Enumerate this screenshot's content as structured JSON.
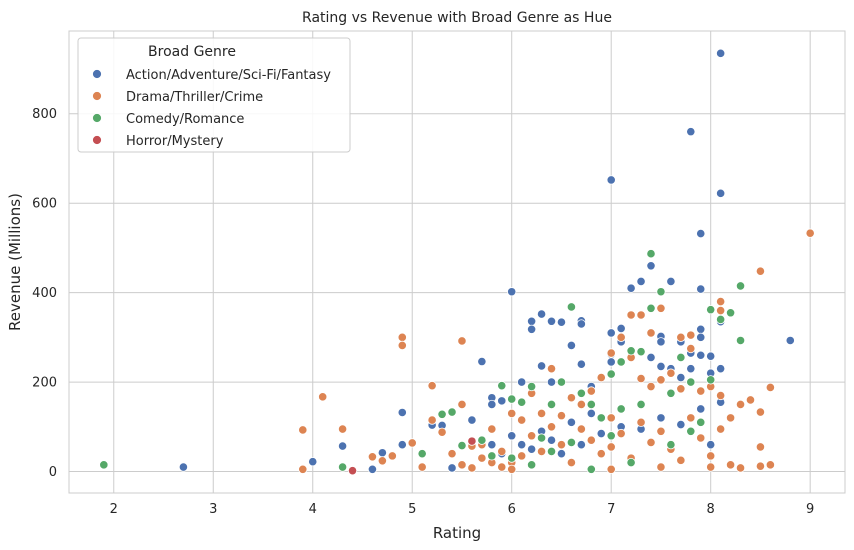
{
  "chart_data": {
    "type": "scatter",
    "title": "Rating vs Revenue with Broad Genre as Hue",
    "xlabel": "Rating",
    "ylabel": "Revenue (Millions)",
    "xlim": [
      1.55,
      9.35
    ],
    "ylim": [
      -48,
      985
    ],
    "xticks": [
      2,
      3,
      4,
      5,
      6,
      7,
      8,
      9
    ],
    "yticks": [
      0,
      200,
      400,
      600,
      800
    ],
    "grid": true,
    "legend": {
      "title": "Broad Genre",
      "placement": "top-left"
    },
    "series": [
      {
        "name": "Action/Adventure/Sci-Fi/Fantasy",
        "color": "#4c72b0",
        "points": [
          [
            2.7,
            10
          ],
          [
            4.0,
            22
          ],
          [
            4.3,
            57
          ],
          [
            4.6,
            5
          ],
          [
            4.7,
            42
          ],
          [
            4.9,
            132
          ],
          [
            4.9,
            60
          ],
          [
            5.2,
            104
          ],
          [
            5.3,
            103
          ],
          [
            5.4,
            8
          ],
          [
            5.6,
            115
          ],
          [
            5.7,
            246
          ],
          [
            5.8,
            165
          ],
          [
            5.8,
            150
          ],
          [
            5.9,
            158
          ],
          [
            6.0,
            402
          ],
          [
            6.1,
            200
          ],
          [
            6.2,
            336
          ],
          [
            6.2,
            318
          ],
          [
            6.3,
            352
          ],
          [
            6.3,
            236
          ],
          [
            6.4,
            336
          ],
          [
            6.4,
            200
          ],
          [
            6.5,
            334
          ],
          [
            6.6,
            282
          ],
          [
            6.7,
            337
          ],
          [
            6.7,
            330
          ],
          [
            6.7,
            240
          ],
          [
            6.8,
            190
          ],
          [
            7.0,
            652
          ],
          [
            7.0,
            310
          ],
          [
            7.0,
            262
          ],
          [
            7.0,
            245
          ],
          [
            7.1,
            320
          ],
          [
            7.1,
            290
          ],
          [
            7.2,
            410
          ],
          [
            7.3,
            425
          ],
          [
            7.4,
            460
          ],
          [
            7.4,
            255
          ],
          [
            7.5,
            302
          ],
          [
            7.5,
            290
          ],
          [
            7.5,
            235
          ],
          [
            7.6,
            425
          ],
          [
            7.6,
            230
          ],
          [
            7.7,
            290
          ],
          [
            7.7,
            210
          ],
          [
            7.8,
            760
          ],
          [
            7.8,
            265
          ],
          [
            7.8,
            230
          ],
          [
            7.9,
            532
          ],
          [
            7.9,
            408
          ],
          [
            7.9,
            318
          ],
          [
            7.9,
            300
          ],
          [
            7.9,
            260
          ],
          [
            8.0,
            258
          ],
          [
            8.0,
            220
          ],
          [
            8.1,
            935
          ],
          [
            8.1,
            622
          ],
          [
            8.1,
            335
          ],
          [
            8.1,
            230
          ],
          [
            8.1,
            155
          ],
          [
            8.8,
            293
          ],
          [
            6.0,
            80
          ],
          [
            6.1,
            60
          ],
          [
            6.2,
            50
          ],
          [
            6.3,
            90
          ],
          [
            6.4,
            70
          ],
          [
            6.5,
            40
          ],
          [
            6.6,
            110
          ],
          [
            6.7,
            60
          ],
          [
            6.8,
            130
          ],
          [
            6.9,
            85
          ],
          [
            7.1,
            100
          ],
          [
            7.3,
            95
          ],
          [
            7.5,
            120
          ],
          [
            7.7,
            105
          ],
          [
            7.9,
            140
          ],
          [
            8.0,
            60
          ],
          [
            5.8,
            60
          ],
          [
            5.9,
            40
          ]
        ]
      },
      {
        "name": "Drama/Thriller/Crime",
        "color": "#dd8452",
        "points": [
          [
            3.9,
            93
          ],
          [
            3.9,
            5
          ],
          [
            4.1,
            167
          ],
          [
            4.3,
            95
          ],
          [
            4.3,
            10
          ],
          [
            4.6,
            33
          ],
          [
            4.7,
            24
          ],
          [
            4.8,
            35
          ],
          [
            4.9,
            300
          ],
          [
            4.9,
            282
          ],
          [
            5.0,
            64
          ],
          [
            5.1,
            10
          ],
          [
            5.2,
            192
          ],
          [
            5.2,
            115
          ],
          [
            5.3,
            88
          ],
          [
            5.4,
            40
          ],
          [
            5.5,
            292
          ],
          [
            5.5,
            150
          ],
          [
            5.6,
            57
          ],
          [
            5.7,
            60
          ],
          [
            5.8,
            95
          ],
          [
            5.9,
            45
          ],
          [
            6.0,
            130
          ],
          [
            6.1,
            115
          ],
          [
            6.2,
            175
          ],
          [
            6.3,
            130
          ],
          [
            6.4,
            230
          ],
          [
            6.5,
            125
          ],
          [
            6.6,
            165
          ],
          [
            6.7,
            150
          ],
          [
            6.8,
            180
          ],
          [
            6.9,
            210
          ],
          [
            7.0,
            265
          ],
          [
            7.1,
            300
          ],
          [
            7.2,
            350
          ],
          [
            7.2,
            255
          ],
          [
            7.3,
            350
          ],
          [
            7.3,
            208
          ],
          [
            7.4,
            310
          ],
          [
            7.4,
            190
          ],
          [
            7.5,
            365
          ],
          [
            7.5,
            205
          ],
          [
            7.6,
            220
          ],
          [
            7.7,
            300
          ],
          [
            7.7,
            185
          ],
          [
            7.8,
            305
          ],
          [
            7.8,
            275
          ],
          [
            7.9,
            180
          ],
          [
            8.0,
            190
          ],
          [
            8.1,
            380
          ],
          [
            8.1,
            360
          ],
          [
            8.1,
            170
          ],
          [
            8.2,
            120
          ],
          [
            8.3,
            150
          ],
          [
            8.4,
            160
          ],
          [
            8.5,
            448
          ],
          [
            8.5,
            133
          ],
          [
            8.5,
            55
          ],
          [
            8.6,
            188
          ],
          [
            8.6,
            15
          ],
          [
            9.0,
            533
          ],
          [
            6.0,
            20
          ],
          [
            6.1,
            35
          ],
          [
            6.2,
            80
          ],
          [
            6.3,
            45
          ],
          [
            6.4,
            100
          ],
          [
            6.5,
            60
          ],
          [
            6.6,
            20
          ],
          [
            6.7,
            95
          ],
          [
            6.8,
            70
          ],
          [
            6.9,
            40
          ],
          [
            7.0,
            120
          ],
          [
            7.0,
            55
          ],
          [
            7.1,
            85
          ],
          [
            7.2,
            30
          ],
          [
            7.3,
            110
          ],
          [
            7.4,
            65
          ],
          [
            7.5,
            90
          ],
          [
            7.6,
            50
          ],
          [
            7.7,
            25
          ],
          [
            7.8,
            120
          ],
          [
            7.9,
            75
          ],
          [
            8.0,
            35
          ],
          [
            8.1,
            95
          ],
          [
            8.2,
            15
          ],
          [
            8.3,
            8
          ],
          [
            8.5,
            12
          ],
          [
            5.5,
            15
          ],
          [
            5.6,
            8
          ],
          [
            5.7,
            30
          ],
          [
            5.8,
            20
          ],
          [
            5.9,
            10
          ],
          [
            6.0,
            5
          ],
          [
            7.0,
            5
          ],
          [
            7.5,
            10
          ],
          [
            8.0,
            10
          ]
        ]
      },
      {
        "name": "Comedy/Romance",
        "color": "#55a868",
        "points": [
          [
            1.9,
            15
          ],
          [
            4.3,
            10
          ],
          [
            5.1,
            40
          ],
          [
            5.3,
            128
          ],
          [
            5.4,
            133
          ],
          [
            5.5,
            58
          ],
          [
            5.7,
            70
          ],
          [
            5.8,
            35
          ],
          [
            5.9,
            192
          ],
          [
            6.0,
            162
          ],
          [
            6.1,
            155
          ],
          [
            6.2,
            190
          ],
          [
            6.3,
            75
          ],
          [
            6.4,
            150
          ],
          [
            6.5,
            200
          ],
          [
            6.6,
            368
          ],
          [
            6.7,
            175
          ],
          [
            6.8,
            150
          ],
          [
            6.9,
            120
          ],
          [
            7.0,
            218
          ],
          [
            7.1,
            245
          ],
          [
            7.1,
            140
          ],
          [
            7.2,
            270
          ],
          [
            7.3,
            268
          ],
          [
            7.3,
            150
          ],
          [
            7.4,
            487
          ],
          [
            7.4,
            365
          ],
          [
            7.5,
            402
          ],
          [
            7.6,
            175
          ],
          [
            7.7,
            255
          ],
          [
            7.8,
            200
          ],
          [
            7.9,
            110
          ],
          [
            8.0,
            362
          ],
          [
            8.0,
            205
          ],
          [
            8.1,
            340
          ],
          [
            8.2,
            355
          ],
          [
            8.3,
            415
          ],
          [
            8.3,
            293
          ],
          [
            6.0,
            30
          ],
          [
            6.2,
            15
          ],
          [
            6.4,
            45
          ],
          [
            6.6,
            65
          ],
          [
            6.8,
            5
          ],
          [
            7.0,
            80
          ],
          [
            7.2,
            20
          ],
          [
            7.6,
            60
          ],
          [
            7.8,
            90
          ]
        ]
      },
      {
        "name": "Horror/Mystery",
        "color": "#c44e52",
        "points": [
          [
            4.4,
            2
          ],
          [
            5.6,
            68
          ]
        ]
      }
    ]
  }
}
